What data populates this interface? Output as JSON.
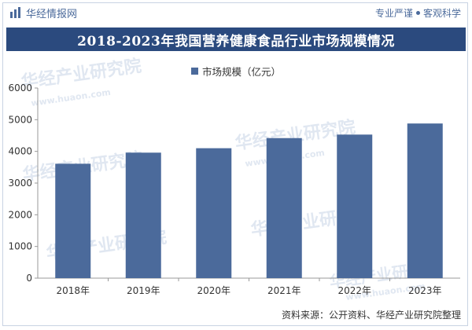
{
  "header": {
    "brand": "华经情报网",
    "slogan_left": "专业严谨",
    "slogan_right": "客观科学"
  },
  "watermark": {
    "brand": "华经产业研究院",
    "url": "www.huaon.com"
  },
  "chart_data": {
    "type": "bar",
    "title": "2018-2023年我国营养健康食品行业市场规模情况",
    "categories": [
      "2018年",
      "2019年",
      "2020年",
      "2021年",
      "2022年",
      "2023年"
    ],
    "series": [
      {
        "name": "市场规模（亿元）",
        "values": [
          3610,
          3960,
          4100,
          4420,
          4530,
          4880
        ]
      }
    ],
    "yticks": [
      "0",
      "1000",
      "2000",
      "3000",
      "4000",
      "5000",
      "6000"
    ],
    "ylim": [
      0,
      6000
    ],
    "grid": false,
    "legend": "top-center",
    "color": "#4b6a9b"
  },
  "footer": {
    "source": "资料来源：公开资料、华经产业研究院整理"
  }
}
